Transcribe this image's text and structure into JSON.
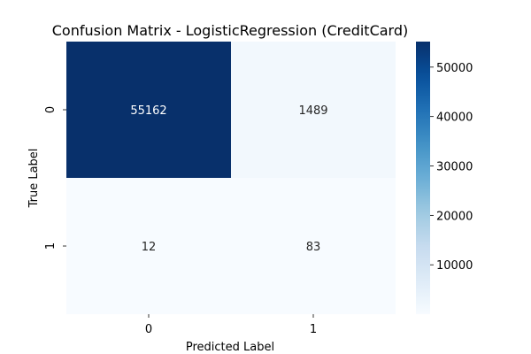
{
  "chart_data": {
    "type": "heatmap",
    "title": "Confusion Matrix - LogisticRegression (CreditCard)",
    "xlabel": "Predicted Label",
    "ylabel": "True Label",
    "x_categories": [
      "0",
      "1"
    ],
    "y_categories": [
      "0",
      "1"
    ],
    "values": [
      [
        55162,
        1489
      ],
      [
        12,
        83
      ]
    ],
    "colormap": "Blues",
    "colorbar": {
      "min": 12,
      "max": 55162,
      "ticks": [
        10000,
        20000,
        30000,
        40000,
        50000
      ],
      "tick_labels": [
        "10000",
        "20000",
        "30000",
        "40000",
        "50000"
      ]
    },
    "colors": {
      "low": "#f7fbff",
      "high": "#08306b",
      "annotation_light": "#ffffff",
      "annotation_dark": "#262626"
    }
  }
}
